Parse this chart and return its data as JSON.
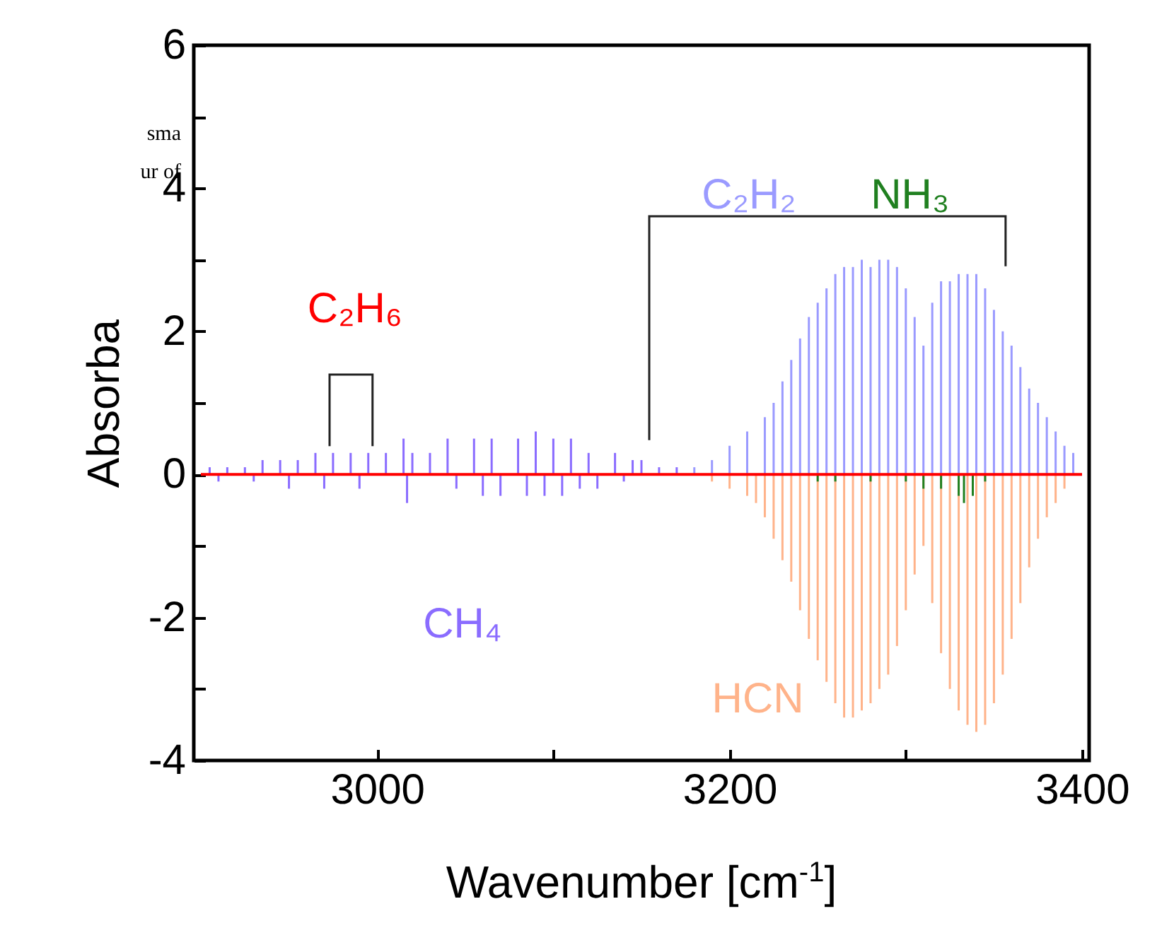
{
  "chart_data": {
    "type": "bar",
    "xlabel": "Wavenumber [cm$^{-1}$]",
    "ylabel": "Absorba",
    "annotations": [
      "sma",
      "ur of"
    ],
    "xlim": [
      2900,
      3400
    ],
    "xticks": [
      3000,
      {
        "value": 3100,
        "label": null
      },
      3200,
      {
        "value": 3300,
        "label": null
      },
      3400
    ],
    "ylim": [
      -4,
      6
    ],
    "yticks": [
      -4,
      {
        "value": -3,
        "label": null
      },
      -2,
      {
        "value": -1,
        "label": null
      },
      0,
      {
        "value": 1,
        "label": null
      },
      2,
      {
        "value": 3,
        "label": null
      },
      4,
      {
        "value": 5,
        "label": null
      },
      6
    ],
    "grid": false,
    "series": [
      {
        "name": "C₂H₆",
        "type": "line",
        "color": "#ff0000",
        "x": [
          2900,
          3400
        ],
        "values": [
          0,
          0
        ]
      },
      {
        "name": "CH₄",
        "color": "#8a6cff",
        "x": [
          2905,
          2910,
          2915,
          2925,
          2930,
          2935,
          2945,
          2950,
          2955,
          2965,
          2970,
          2975,
          2985,
          2990,
          2995,
          3005,
          3015,
          3017,
          3020,
          3030,
          3040,
          3045,
          3055,
          3060,
          3065,
          3070,
          3080,
          3085,
          3090,
          3095,
          3100,
          3105,
          3110,
          3115,
          3120,
          3125,
          3135,
          3140,
          3145,
          3150,
          3160,
          3170
        ],
        "values": [
          0.1,
          -0.1,
          0.1,
          0.1,
          -0.1,
          0.2,
          0.2,
          -0.2,
          0.2,
          0.3,
          -0.2,
          0.3,
          0.3,
          -0.2,
          0.3,
          0.3,
          0.5,
          -0.4,
          0.3,
          0.3,
          0.5,
          -0.2,
          0.5,
          -0.3,
          0.5,
          -0.3,
          0.5,
          -0.3,
          0.6,
          -0.3,
          0.5,
          -0.3,
          0.5,
          -0.2,
          0.3,
          -0.2,
          0.3,
          -0.1,
          0.2,
          0.2,
          0.1,
          0.1
        ]
      },
      {
        "name": "C₂H₂",
        "color": "#9a9aff",
        "x": [
          3180,
          3190,
          3200,
          3210,
          3220,
          3225,
          3230,
          3235,
          3240,
          3245,
          3250,
          3255,
          3260,
          3265,
          3270,
          3275,
          3280,
          3285,
          3290,
          3295,
          3300,
          3305,
          3310,
          3315,
          3320,
          3325,
          3330,
          3335,
          3340,
          3345,
          3350,
          3355,
          3360,
          3365,
          3370,
          3375,
          3380,
          3385,
          3390,
          3395
        ],
        "values": [
          0.1,
          0.2,
          0.4,
          0.6,
          0.8,
          1.0,
          1.3,
          1.6,
          1.9,
          2.2,
          2.4,
          2.6,
          2.8,
          2.9,
          2.9,
          3.0,
          2.9,
          3.0,
          3.0,
          2.9,
          2.6,
          2.2,
          1.8,
          2.4,
          2.7,
          2.7,
          2.8,
          2.8,
          2.8,
          2.6,
          2.3,
          2.0,
          1.8,
          1.5,
          1.2,
          1.0,
          0.8,
          0.6,
          0.4,
          0.3
        ]
      },
      {
        "name": "HCN",
        "color": "#ffb38a",
        "x": [
          3190,
          3200,
          3210,
          3215,
          3220,
          3225,
          3230,
          3235,
          3240,
          3245,
          3250,
          3255,
          3260,
          3265,
          3270,
          3275,
          3280,
          3285,
          3290,
          3295,
          3300,
          3305,
          3310,
          3315,
          3320,
          3325,
          3330,
          3335,
          3340,
          3345,
          3350,
          3355,
          3360,
          3365,
          3370,
          3375,
          3380,
          3385,
          3390
        ],
        "values": [
          -0.1,
          -0.2,
          -0.3,
          -0.4,
          -0.6,
          -0.9,
          -1.2,
          -1.5,
          -1.9,
          -2.3,
          -2.6,
          -2.9,
          -3.2,
          -3.4,
          -3.4,
          -3.3,
          -3.2,
          -3.0,
          -2.8,
          -2.4,
          -1.9,
          -1.4,
          -1.0,
          -1.8,
          -2.5,
          -3.0,
          -3.3,
          -3.5,
          -3.6,
          -3.5,
          -3.2,
          -2.8,
          -2.3,
          -1.8,
          -1.3,
          -0.9,
          -0.6,
          -0.4,
          -0.2
        ]
      },
      {
        "name": "NH₃",
        "color": "#208020",
        "x": [
          3250,
          3260,
          3280,
          3300,
          3310,
          3320,
          3330,
          3333,
          3338,
          3345
        ],
        "values": [
          -0.1,
          -0.1,
          -0.1,
          -0.1,
          -0.2,
          -0.2,
          -0.3,
          -0.4,
          -0.3,
          -0.1
        ]
      }
    ]
  }
}
